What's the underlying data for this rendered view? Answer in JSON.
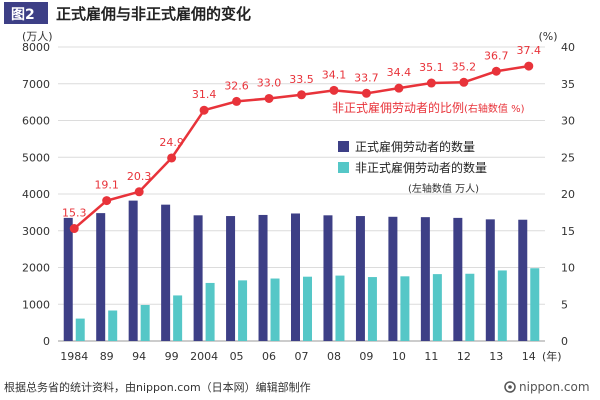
{
  "chart_data": {
    "type": "bar+line",
    "figure_label": "图2",
    "title": "正式雇佣与非正式雇佣的变化",
    "categories": [
      "1984",
      "89",
      "94",
      "99",
      "2004",
      "05",
      "06",
      "07",
      "08",
      "09",
      "10",
      "11",
      "12",
      "13",
      "14"
    ],
    "x_unit": "(年)",
    "left_axis": {
      "unit": "(万人)",
      "min": 0,
      "max": 8000,
      "ticks": [
        0,
        1000,
        2000,
        3000,
        4000,
        5000,
        6000,
        7000,
        8000
      ]
    },
    "right_axis": {
      "unit": "(%)",
      "min": 0,
      "max": 40,
      "ticks": [
        0,
        5,
        10,
        15,
        20,
        25,
        30,
        35,
        40
      ]
    },
    "series": [
      {
        "name": "正式雇佣劳动者的数量",
        "type": "bar",
        "axis": "left",
        "color": "#3d3f86",
        "values": [
          3350,
          3480,
          3820,
          3710,
          3420,
          3400,
          3430,
          3470,
          3420,
          3400,
          3380,
          3370,
          3350,
          3310,
          3300
        ]
      },
      {
        "name": "非正式雇佣劳动者的数量",
        "type": "bar",
        "axis": "left",
        "color": "#55c7c7",
        "values": [
          610,
          830,
          980,
          1240,
          1580,
          1650,
          1700,
          1750,
          1780,
          1740,
          1760,
          1820,
          1830,
          1920,
          1980
        ]
      },
      {
        "name": "非正式雇佣劳动者的比例",
        "type": "line",
        "axis": "right",
        "color": "#e8333a",
        "values": [
          15.3,
          19.1,
          20.3,
          24.9,
          31.4,
          32.6,
          33.0,
          33.5,
          34.1,
          33.7,
          34.4,
          35.1,
          35.2,
          36.7,
          37.4
        ],
        "labels": [
          "15.3",
          "19.1",
          "20.3",
          "24.9",
          "31.4",
          "32.6",
          "33.0",
          "33.5",
          "34.1",
          "33.7",
          "34.4",
          "35.1",
          "35.2",
          "36.7",
          "37.4"
        ]
      }
    ],
    "line_label_main": "非正式雇佣劳动者的比例",
    "line_label_note": "(右轴数值 %)",
    "legend_note": "(左轴数值 万人)",
    "source": "根据总务省的统计资料，由nippon.com（日本网）编辑部制作",
    "brand": "nippon.com"
  }
}
